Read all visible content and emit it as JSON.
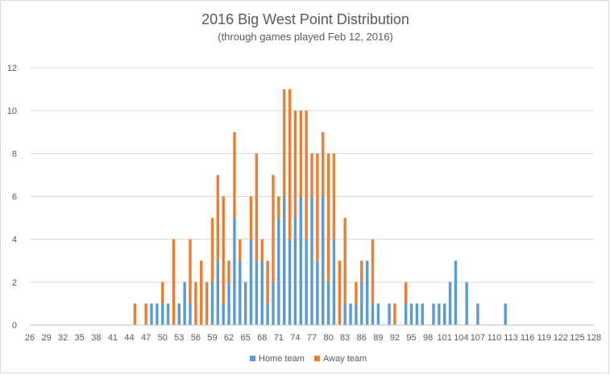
{
  "chart_data": {
    "type": "bar",
    "stacked": true,
    "title": "2016 Big West Point Distribution",
    "subtitle": "(through games played Feb 12, 2016)",
    "xlabel": "",
    "ylabel": "",
    "x_min": 26,
    "x_max": 128,
    "x_tick_labels": [
      "26",
      "29",
      "32",
      "35",
      "38",
      "41",
      "44",
      "47",
      "50",
      "53",
      "56",
      "59",
      "62",
      "65",
      "68",
      "71",
      "74",
      "77",
      "80",
      "83",
      "86",
      "89",
      "92",
      "95",
      "98",
      "101",
      "104",
      "107",
      "110",
      "113",
      "116",
      "119",
      "122",
      "125",
      "128"
    ],
    "ylim": [
      0,
      12
    ],
    "y_ticks": [
      0,
      2,
      4,
      6,
      8,
      10,
      12
    ],
    "grid": true,
    "legend_position": "bottom",
    "series": [
      {
        "name": "Home team",
        "color": "#5b9bd5",
        "points": [
          [
            45,
            0
          ],
          [
            47,
            0
          ],
          [
            48,
            1
          ],
          [
            49,
            1
          ],
          [
            50,
            1
          ],
          [
            51,
            1
          ],
          [
            52,
            0
          ],
          [
            53,
            1
          ],
          [
            54,
            2
          ],
          [
            55,
            1
          ],
          [
            56,
            0
          ],
          [
            57,
            0
          ],
          [
            58,
            0
          ],
          [
            59,
            2
          ],
          [
            60,
            3
          ],
          [
            61,
            1
          ],
          [
            62,
            2
          ],
          [
            63,
            5
          ],
          [
            64,
            3
          ],
          [
            65,
            2
          ],
          [
            66,
            4
          ],
          [
            67,
            3
          ],
          [
            68,
            3
          ],
          [
            69,
            1
          ],
          [
            70,
            2
          ],
          [
            71,
            5
          ],
          [
            72,
            6
          ],
          [
            73,
            4
          ],
          [
            74,
            5
          ],
          [
            75,
            6
          ],
          [
            76,
            4
          ],
          [
            77,
            6
          ],
          [
            78,
            3
          ],
          [
            79,
            6
          ],
          [
            80,
            2
          ],
          [
            81,
            4
          ],
          [
            82,
            0
          ],
          [
            83,
            1
          ],
          [
            84,
            1
          ],
          [
            85,
            1
          ],
          [
            86,
            2
          ],
          [
            87,
            3
          ],
          [
            88,
            1
          ],
          [
            89,
            1
          ],
          [
            90,
            0
          ],
          [
            91,
            1
          ],
          [
            92,
            0
          ],
          [
            93,
            0
          ],
          [
            94,
            1
          ],
          [
            95,
            1
          ],
          [
            96,
            1
          ],
          [
            97,
            1
          ],
          [
            98,
            0
          ],
          [
            99,
            1
          ],
          [
            100,
            1
          ],
          [
            101,
            1
          ],
          [
            102,
            2
          ],
          [
            103,
            3
          ],
          [
            104,
            0
          ],
          [
            105,
            2
          ],
          [
            106,
            0
          ],
          [
            107,
            1
          ],
          [
            108,
            0
          ],
          [
            109,
            0
          ],
          [
            110,
            0
          ],
          [
            111,
            0
          ],
          [
            112,
            1
          ]
        ]
      },
      {
        "name": "Away team",
        "color": "#ed7d31",
        "points": [
          [
            45,
            1
          ],
          [
            47,
            1
          ],
          [
            48,
            0
          ],
          [
            49,
            0
          ],
          [
            50,
            1
          ],
          [
            51,
            0
          ],
          [
            52,
            4
          ],
          [
            53,
            0
          ],
          [
            54,
            0
          ],
          [
            55,
            3
          ],
          [
            56,
            2
          ],
          [
            57,
            3
          ],
          [
            58,
            2
          ],
          [
            59,
            3
          ],
          [
            60,
            4
          ],
          [
            61,
            5
          ],
          [
            62,
            1
          ],
          [
            63,
            4
          ],
          [
            64,
            1
          ],
          [
            65,
            0
          ],
          [
            66,
            2
          ],
          [
            67,
            5
          ],
          [
            68,
            1
          ],
          [
            69,
            2
          ],
          [
            70,
            5
          ],
          [
            71,
            1
          ],
          [
            72,
            5
          ],
          [
            73,
            7
          ],
          [
            74,
            5
          ],
          [
            75,
            4
          ],
          [
            76,
            6
          ],
          [
            77,
            2
          ],
          [
            78,
            5
          ],
          [
            79,
            3
          ],
          [
            80,
            6
          ],
          [
            81,
            4
          ],
          [
            82,
            3
          ],
          [
            83,
            4
          ],
          [
            84,
            0
          ],
          [
            85,
            1
          ],
          [
            86,
            1
          ],
          [
            87,
            0
          ],
          [
            88,
            3
          ],
          [
            89,
            0
          ],
          [
            90,
            0
          ],
          [
            91,
            0
          ],
          [
            92,
            1
          ],
          [
            93,
            0
          ],
          [
            94,
            1
          ],
          [
            95,
            0
          ],
          [
            96,
            0
          ],
          [
            97,
            0
          ],
          [
            98,
            0
          ],
          [
            99,
            0
          ],
          [
            100,
            0
          ],
          [
            101,
            0
          ],
          [
            102,
            0
          ],
          [
            103,
            0
          ],
          [
            104,
            0
          ],
          [
            105,
            0
          ],
          [
            106,
            0
          ],
          [
            107,
            0
          ],
          [
            108,
            0
          ],
          [
            109,
            0
          ],
          [
            110,
            0
          ],
          [
            111,
            0
          ],
          [
            112,
            0
          ]
        ]
      }
    ]
  }
}
